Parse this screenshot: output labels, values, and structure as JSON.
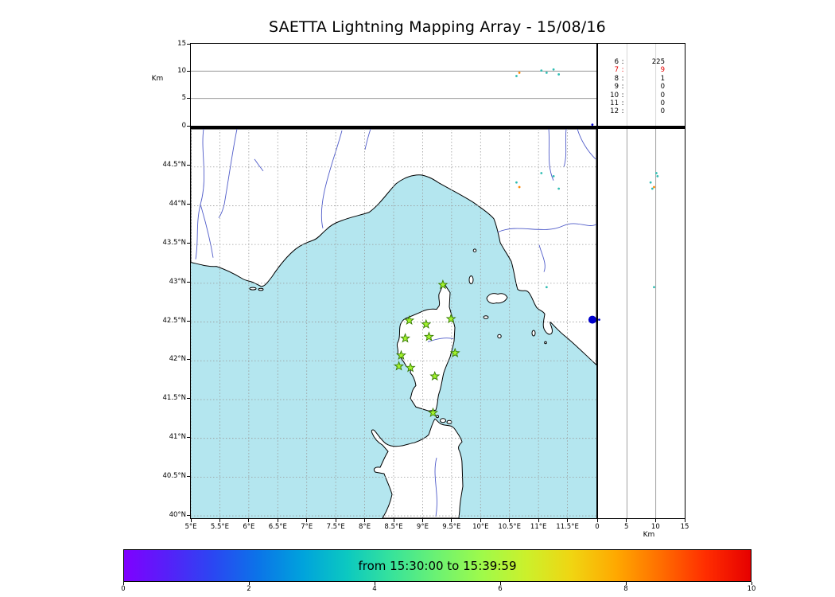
{
  "title": "SAETTA Lightning Mapping Array - 15/08/16",
  "axis_labels": {
    "alt_top": "Km",
    "alt_right": "Km"
  },
  "colorbar": {
    "label": "from 15:30:00 to 15:39:59",
    "tick_labels": [
      "0",
      "2",
      "4",
      "6",
      "8",
      "10"
    ],
    "gradient": [
      "#7f00ff",
      "#5521f8",
      "#2a47f2",
      "#0b74e8",
      "#00a3dc",
      "#0cc9c0",
      "#38e39a",
      "#6cf272",
      "#9ffa4a",
      "#ccf02b",
      "#f0d512",
      "#ffa800",
      "#ff6d00",
      "#ff2d00",
      "#e60000"
    ]
  },
  "colors": {
    "sea": "#b4e6ef",
    "land": "#ffffff",
    "coastline": "#000000",
    "river": "#4f5bc9",
    "grid": "#999999",
    "alt_grid": "#888888",
    "counts_grid": "#cccccc",
    "station_fill": "#a2f22e",
    "station_edge": "#357a00",
    "highlight_red": "#e60000"
  },
  "chart_data": {
    "type": "scatter",
    "title": "SAETTA Lightning Mapping Array - 15/08/16",
    "layout": "XLMA-style lightning mapping display: altitude-vs-longitude top panel, station-count list top right, lon-lat map main panel, altitude-vs-latitude right panel, time colorbar at bottom",
    "map": {
      "lon_range": [
        5,
        12
      ],
      "lat_range": [
        39.97,
        44.99
      ],
      "grid": "dashed",
      "lon_ticks": [
        {
          "value": 5,
          "label": "5°E"
        },
        {
          "value": 5.5,
          "label": "5.5°E"
        },
        {
          "value": 6,
          "label": "6°E"
        },
        {
          "value": 6.5,
          "label": "6.5°E"
        },
        {
          "value": 7,
          "label": "7°E"
        },
        {
          "value": 7.5,
          "label": "7.5°E"
        },
        {
          "value": 8,
          "label": "8°E"
        },
        {
          "value": 8.5,
          "label": "8.5°E"
        },
        {
          "value": 9,
          "label": "9°E"
        },
        {
          "value": 9.5,
          "label": "9.5°E"
        },
        {
          "value": 10,
          "label": "10°E"
        },
        {
          "value": 10.5,
          "label": "10.5°E"
        },
        {
          "value": 11,
          "label": "11°E"
        },
        {
          "value": 11.5,
          "label": "11.5°E"
        }
      ],
      "lat_ticks": [
        {
          "value": 44.5,
          "label": "44.5°N"
        },
        {
          "value": 44,
          "label": "44°N"
        },
        {
          "value": 43.5,
          "label": "43.5°N"
        },
        {
          "value": 43,
          "label": "43°N"
        },
        {
          "value": 42.5,
          "label": "42.5°N"
        },
        {
          "value": 42,
          "label": "42°N"
        },
        {
          "value": 41.5,
          "label": "41.5°N"
        },
        {
          "value": 41,
          "label": "41°N"
        },
        {
          "value": 40.5,
          "label": "40.5°N"
        },
        {
          "value": 40,
          "label": "40°N"
        }
      ]
    },
    "altitude": {
      "range_km": [
        0,
        15
      ],
      "ticks": [
        0,
        5,
        10,
        15
      ],
      "gridlines": [
        5,
        10
      ],
      "label": "Km"
    },
    "stations": [
      [
        9.35,
        42.98
      ],
      [
        8.77,
        42.52
      ],
      [
        9.06,
        42.47
      ],
      [
        9.49,
        42.54
      ],
      [
        8.7,
        42.29
      ],
      [
        9.11,
        42.31
      ],
      [
        9.56,
        42.1
      ],
      [
        8.63,
        42.07
      ],
      [
        8.59,
        41.93
      ],
      [
        8.79,
        41.91
      ],
      [
        9.21,
        41.8
      ],
      [
        9.18,
        41.33
      ]
    ],
    "sources": [
      {
        "lon": 10.62,
        "lat": 44.3,
        "alt_km": 9.1,
        "color": "#2fbdb3"
      },
      {
        "lon": 10.67,
        "lat": 44.24,
        "alt_km": 9.7,
        "color": "#ff8800"
      },
      {
        "lon": 11.05,
        "lat": 44.42,
        "alt_km": 10.1,
        "color": "#2fbdb3"
      },
      {
        "lon": 11.26,
        "lat": 44.38,
        "alt_km": 10.3,
        "color": "#2fbdb3"
      },
      {
        "lon": 11.35,
        "lat": 44.22,
        "alt_km": 9.4,
        "color": "#2fbdb3"
      },
      {
        "lon": 11.14,
        "lat": 42.95,
        "alt_km": 9.7,
        "color": "#2fbdb3"
      },
      {
        "lon": 11.93,
        "lat": 42.53,
        "alt_km": 0.2,
        "color": "#0000cc",
        "big": true
      }
    ],
    "station_count_histogram": [
      {
        "stations": "6",
        "count": "225",
        "highlight": false
      },
      {
        "stations": "7",
        "count": "9",
        "highlight": true
      },
      {
        "stations": "8",
        "count": "1",
        "highlight": false
      },
      {
        "stations": "9",
        "count": "0",
        "highlight": false
      },
      {
        "stations": "10",
        "count": "0",
        "highlight": false
      },
      {
        "stations": "11",
        "count": "0",
        "highlight": false
      },
      {
        "stations": "12",
        "count": "0",
        "highlight": false
      }
    ],
    "time_window": {
      "from": "15:30:00",
      "to": "15:39:59",
      "colorbar_range": [
        0,
        10
      ],
      "colorbar_ticks": [
        0,
        2,
        4,
        6,
        8,
        10
      ]
    }
  }
}
